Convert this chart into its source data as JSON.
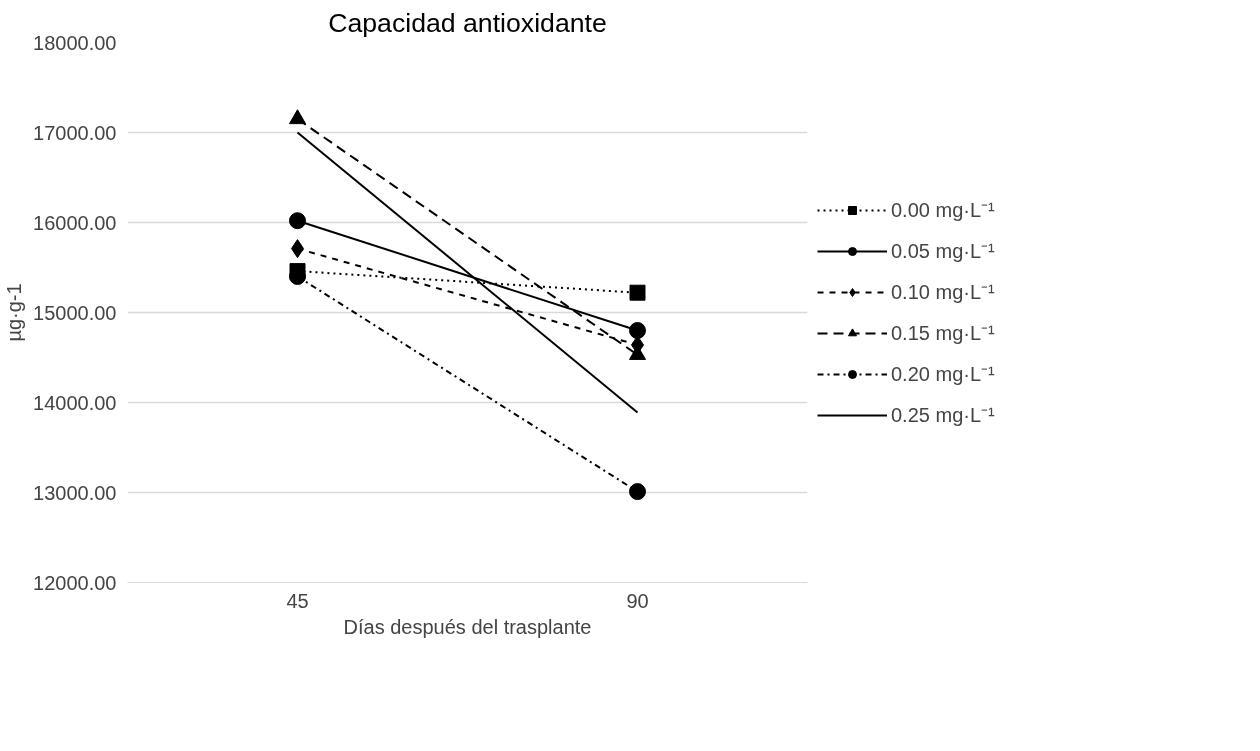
{
  "chart_data": {
    "type": "line",
    "title": "Capacidad antioxidante",
    "xlabel": "Días después del trasplante",
    "ylabel": "µg·g-1",
    "categories": [
      "45",
      "90"
    ],
    "series": [
      {
        "name": "0.00 mg·L⁻¹",
        "color": "#000000",
        "values": [
          15460,
          15220
        ],
        "marker": "square",
        "line_style": "dotted"
      },
      {
        "name": "0.05 mg·L⁻¹",
        "color": "#000000",
        "values": [
          16020,
          14800
        ],
        "marker": "circle",
        "line_style": "solid"
      },
      {
        "name": "0.10 mg·L⁻¹",
        "color": "#000000",
        "values": [
          15710,
          14640
        ],
        "marker": "diamond",
        "line_style": "dashed"
      },
      {
        "name": "0.15 mg·L⁻¹",
        "color": "#000000",
        "values": [
          17150,
          14530
        ],
        "marker": "triangle",
        "line_style": "longdash"
      },
      {
        "name": "0.20 mg·L⁻¹",
        "color": "#000000",
        "values": [
          15400,
          13010
        ],
        "marker": "circle",
        "line_style": "dashdot"
      },
      {
        "name": "0.25 mg·L⁻¹",
        "color": "#000000",
        "values": [
          17000,
          13890
        ],
        "marker": "none",
        "line_style": "solid"
      }
    ],
    "ylim": [
      12000,
      18000
    ],
    "yticks": [
      {
        "value": 12000,
        "label": "12000.00"
      },
      {
        "value": 13000,
        "label": "13000.00"
      },
      {
        "value": 14000,
        "label": "14000.00"
      },
      {
        "value": 15000,
        "label": "15000.00"
      },
      {
        "value": 16000,
        "label": "16000.00"
      },
      {
        "value": 17000,
        "label": "17000.00"
      },
      {
        "value": 18000,
        "label": "18000.00"
      }
    ],
    "grid": "y",
    "legend": "right"
  }
}
